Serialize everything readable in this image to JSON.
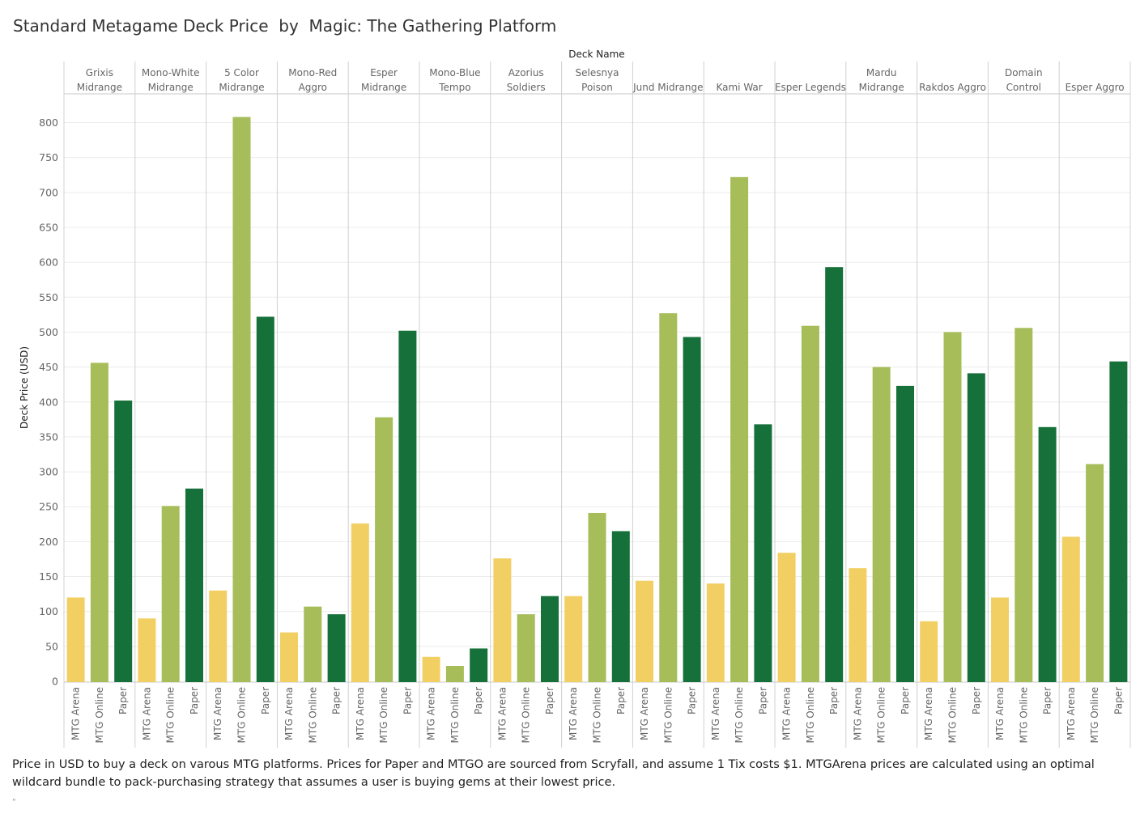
{
  "title": "Standard Metagame Deck Price  by  Magic: The Gathering Platform",
  "caption": "Price in USD to buy a deck on varous MTG platforms.  Prices for Paper and MTGO are sourced from Scryfall, and assume 1 Tix costs $1.  MTGArena prices are calculated using an optimal wildcard bundle to pack-purchasing strategy that assumes a user is buying gems at their lowest price.",
  "footnote": "\"",
  "colors": {
    "MTG Arena": "#f2cf63",
    "MTG Online": "#a6bd5a",
    "Paper": "#16703a"
  },
  "chart_data": {
    "type": "bar",
    "title": "Standard Metagame Deck Price  by  Magic: The Gathering Platform",
    "column_header": "Deck Name",
    "ylabel": "Deck Price (USD)",
    "ylim": [
      0,
      830
    ],
    "yticks": [
      0,
      50,
      100,
      150,
      200,
      250,
      300,
      350,
      400,
      450,
      500,
      550,
      600,
      650,
      700,
      750,
      800
    ],
    "grid": true,
    "platforms": [
      "MTG Arena",
      "MTG Online",
      "Paper"
    ],
    "decks": [
      {
        "name": [
          "Grixis",
          "Midrange"
        ],
        "values": [
          120,
          456,
          402
        ]
      },
      {
        "name": [
          "Mono-White",
          "Midrange"
        ],
        "values": [
          90,
          251,
          276
        ]
      },
      {
        "name": [
          "5 Color",
          "Midrange"
        ],
        "values": [
          130,
          808,
          522
        ]
      },
      {
        "name": [
          "Mono-Red",
          "Aggro"
        ],
        "values": [
          70,
          107,
          96
        ]
      },
      {
        "name": [
          "Esper",
          "Midrange"
        ],
        "values": [
          226,
          378,
          502
        ]
      },
      {
        "name": [
          "Mono-Blue",
          "Tempo"
        ],
        "values": [
          35,
          22,
          47
        ]
      },
      {
        "name": [
          "Azorius",
          "Soldiers"
        ],
        "values": [
          176,
          96,
          122
        ]
      },
      {
        "name": [
          "Selesnya",
          "Poison"
        ],
        "values": [
          122,
          241,
          215
        ]
      },
      {
        "name": [
          "Jund Midrange"
        ],
        "values": [
          144,
          527,
          493
        ]
      },
      {
        "name": [
          "Kami War"
        ],
        "values": [
          140,
          722,
          368
        ]
      },
      {
        "name": [
          "Esper Legends"
        ],
        "values": [
          184,
          509,
          593
        ]
      },
      {
        "name": [
          "Mardu",
          "Midrange"
        ],
        "values": [
          162,
          450,
          423
        ]
      },
      {
        "name": [
          "Rakdos Aggro"
        ],
        "values": [
          86,
          500,
          441
        ]
      },
      {
        "name": [
          "Domain",
          "Control"
        ],
        "values": [
          120,
          506,
          364
        ]
      },
      {
        "name": [
          "Esper Aggro"
        ],
        "values": [
          207,
          311,
          458
        ]
      }
    ]
  }
}
